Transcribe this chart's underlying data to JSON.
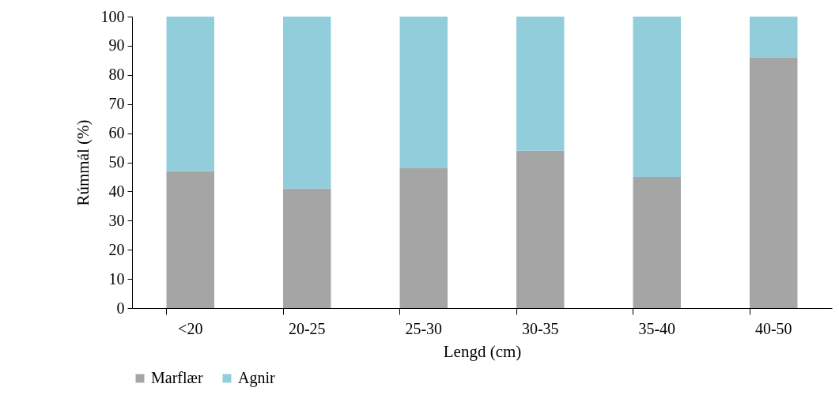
{
  "chart_data": {
    "type": "bar",
    "stacked": true,
    "xlabel": "Lengd (cm)",
    "ylabel": "Rúmmál (%)",
    "categories": [
      "<20",
      "20-25",
      "25-30",
      "30-35",
      "35-40",
      "40-50"
    ],
    "series": [
      {
        "name": "Marflær",
        "color": "#a5a5a5",
        "values": [
          47,
          41,
          48,
          54,
          45,
          86
        ]
      },
      {
        "name": "Agnir",
        "color": "#92cddc",
        "values": [
          53,
          59,
          52,
          46,
          55,
          14
        ]
      }
    ],
    "ylim": [
      0,
      100
    ],
    "yticks": [
      0,
      10,
      20,
      30,
      40,
      50,
      60,
      70,
      80,
      90,
      100
    ],
    "grid": false,
    "legend": "bottom"
  }
}
